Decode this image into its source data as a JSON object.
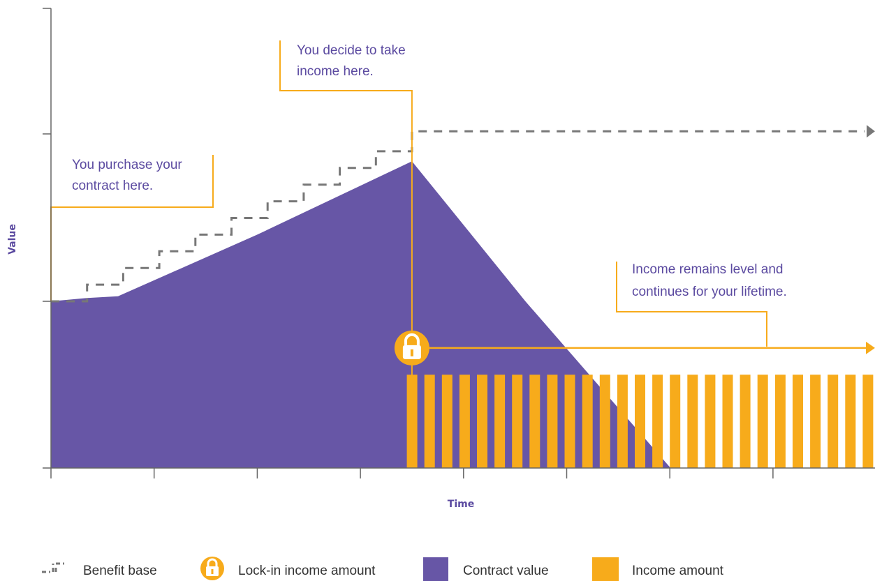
{
  "chart_data": {
    "type": "area",
    "xlabel": "Time",
    "ylabel": "Value",
    "colors": {
      "contract": "#6756a6",
      "income": "#f7ab1b",
      "annotation_line": "#f7ab1b",
      "benefit_base": "#777777",
      "axis": "#666666",
      "text": "#5b4aa0"
    },
    "grid": false,
    "legend_position": "bottom",
    "series": [
      {
        "name": "Contract value",
        "points": [
          [
            0,
            100
          ],
          [
            0.35,
            102
          ],
          [
            0.65,
            103
          ],
          [
            2.0,
            140
          ],
          [
            3.5,
            184
          ],
          [
            4.6,
            100
          ],
          [
            6.0,
            0.5
          ],
          [
            6.15,
            0
          ]
        ]
      },
      {
        "name": "Benefit base",
        "points": [
          [
            0,
            100
          ],
          [
            0.35,
            100
          ],
          [
            0.35,
            110
          ],
          [
            0.7,
            110
          ],
          [
            0.7,
            120
          ],
          [
            1.05,
            120
          ],
          [
            1.05,
            130
          ],
          [
            1.4,
            130
          ],
          [
            1.4,
            140
          ],
          [
            1.75,
            140
          ],
          [
            1.75,
            150
          ],
          [
            2.1,
            150
          ],
          [
            2.1,
            160
          ],
          [
            2.45,
            160
          ],
          [
            2.45,
            170
          ],
          [
            2.8,
            170
          ],
          [
            2.8,
            180
          ],
          [
            3.15,
            180
          ],
          [
            3.15,
            190
          ],
          [
            3.5,
            190
          ],
          [
            3.5,
            202
          ],
          [
            8.0,
            202
          ]
        ]
      },
      {
        "name": "Income amount",
        "start_x": 3.45,
        "bar_count": 27,
        "bar_step": 0.17,
        "value": 56
      }
    ],
    "lock_in": {
      "x": 3.5,
      "y": 72
    },
    "annotations": [
      {
        "lines": [
          "You purchase your",
          "contract here."
        ]
      },
      {
        "lines": [
          "You decide to take",
          "income here."
        ]
      },
      {
        "lines": [
          "Income remains level and",
          "continues for your lifetime."
        ]
      }
    ],
    "legend": [
      {
        "label": "Benefit base",
        "icon": "dashed-step-icon"
      },
      {
        "label": "Lock-in income amount",
        "icon": "lock-icon"
      },
      {
        "label": "Contract value",
        "icon": "purple-square-icon"
      },
      {
        "label": "Income amount",
        "icon": "orange-square-icon"
      }
    ]
  }
}
